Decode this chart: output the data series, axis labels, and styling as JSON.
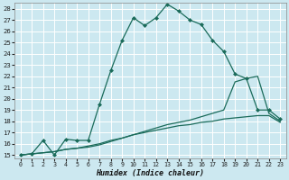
{
  "xlabel": "Humidex (Indice chaleur)",
  "bg_color": "#cce8f0",
  "grid_color": "#ffffff",
  "line_color": "#1a6b5a",
  "xlim": [
    -0.5,
    23.5
  ],
  "ylim": [
    14.7,
    28.5
  ],
  "xticks": [
    0,
    1,
    2,
    3,
    4,
    5,
    6,
    7,
    8,
    9,
    10,
    11,
    12,
    13,
    14,
    15,
    16,
    17,
    18,
    19,
    20,
    21,
    22,
    23
  ],
  "yticks": [
    15,
    16,
    17,
    18,
    19,
    20,
    21,
    22,
    23,
    24,
    25,
    26,
    27,
    28
  ],
  "series1_x": [
    0,
    1,
    2,
    3,
    4,
    5,
    6,
    7,
    8,
    9,
    10,
    11,
    12,
    13,
    14,
    15,
    16,
    17,
    18,
    19,
    20,
    21,
    22,
    23
  ],
  "series1_y": [
    15.0,
    15.1,
    16.3,
    15.0,
    16.4,
    16.3,
    16.3,
    19.5,
    22.5,
    25.2,
    27.2,
    26.5,
    27.2,
    28.4,
    27.8,
    27.0,
    26.6,
    25.2,
    24.2,
    22.2,
    21.8,
    19.0,
    19.0,
    18.2
  ],
  "series2_x": [
    0,
    1,
    2,
    3,
    4,
    5,
    6,
    7,
    8,
    9,
    10,
    11,
    12,
    13,
    14,
    15,
    16,
    17,
    18,
    19,
    20,
    21,
    22,
    23
  ],
  "series2_y": [
    15.0,
    15.1,
    15.2,
    15.3,
    15.5,
    15.6,
    15.7,
    15.9,
    16.2,
    16.5,
    16.8,
    17.1,
    17.4,
    17.7,
    17.9,
    18.1,
    18.4,
    18.7,
    19.0,
    21.5,
    21.8,
    22.0,
    18.7,
    18.0
  ],
  "series3_x": [
    0,
    1,
    2,
    3,
    4,
    5,
    6,
    7,
    8,
    9,
    10,
    11,
    12,
    13,
    14,
    15,
    16,
    17,
    18,
    19,
    20,
    21,
    22,
    23
  ],
  "series3_y": [
    15.0,
    15.1,
    15.2,
    15.3,
    15.5,
    15.6,
    15.8,
    16.0,
    16.3,
    16.5,
    16.8,
    17.0,
    17.2,
    17.4,
    17.6,
    17.7,
    17.9,
    18.0,
    18.2,
    18.3,
    18.4,
    18.5,
    18.5,
    17.9
  ]
}
